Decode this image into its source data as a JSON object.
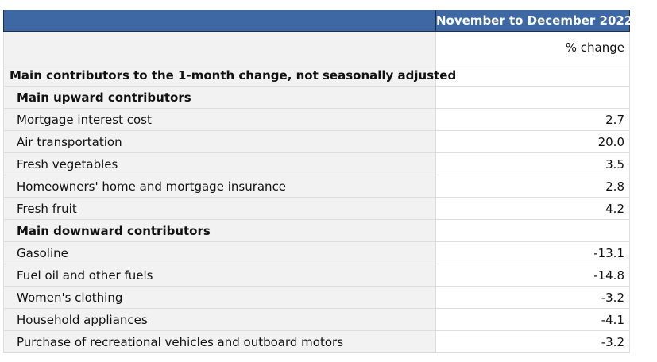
{
  "table": {
    "column_header": "November to December 2022",
    "unit": "% change",
    "title": "Main contributors to the 1-month change, not seasonally adjusted",
    "groups": [
      {
        "heading": "Main upward contributors",
        "rows": [
          {
            "label": "Mortgage interest cost",
            "value": "2.7"
          },
          {
            "label": "Air transportation",
            "value": "20.0"
          },
          {
            "label": "Fresh vegetables",
            "value": "3.5"
          },
          {
            "label": "Homeowners' home and mortgage insurance",
            "value": "2.8"
          },
          {
            "label": "Fresh fruit",
            "value": "4.2"
          }
        ]
      },
      {
        "heading": "Main downward contributors",
        "rows": [
          {
            "label": "Gasoline",
            "value": "-13.1"
          },
          {
            "label": "Fuel oil and other fuels",
            "value": "-14.8"
          },
          {
            "label": "Women's clothing",
            "value": "-3.2"
          },
          {
            "label": "Household appliances",
            "value": "-4.1"
          },
          {
            "label": "Purchase of recreational vehicles and outboard motors",
            "value": "-3.2"
          }
        ]
      }
    ]
  }
}
